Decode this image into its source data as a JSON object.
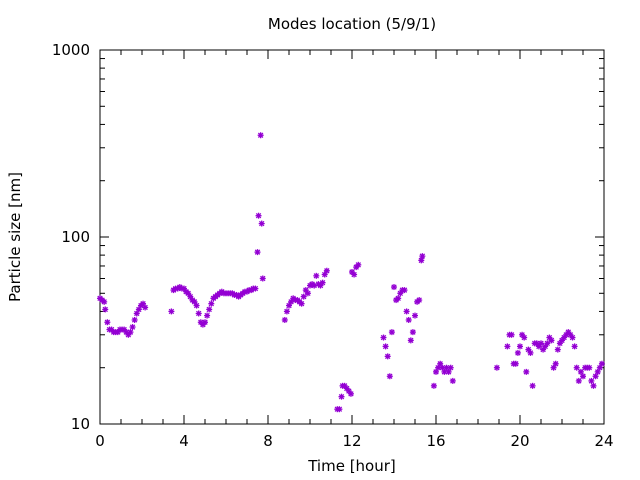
{
  "chart_data": {
    "type": "scatter",
    "title": "Modes location (5/9/1)",
    "xlabel": "Time [hour]",
    "ylabel": "Particle size [nm]",
    "xlim": [
      0,
      24
    ],
    "ylim": [
      10,
      1000
    ],
    "yscale": "log",
    "x_ticks": [
      0,
      4,
      8,
      12,
      16,
      20,
      24
    ],
    "x_tick_labels": [
      "0",
      "4",
      "8",
      "12",
      "16",
      "20",
      "24"
    ],
    "y_ticks": [
      10,
      100,
      1000
    ],
    "y_tick_labels": [
      "10",
      "100",
      "1000"
    ],
    "grid": false,
    "legend": "none",
    "marker_color": "#9400d3",
    "series": [
      {
        "points": [
          [
            0.0,
            47
          ],
          [
            0.1,
            46
          ],
          [
            0.2,
            45
          ],
          [
            0.25,
            41
          ],
          [
            0.35,
            35
          ],
          [
            0.45,
            32
          ],
          [
            0.55,
            32
          ],
          [
            0.65,
            31
          ],
          [
            0.75,
            31
          ],
          [
            0.85,
            31
          ],
          [
            0.95,
            32
          ],
          [
            1.05,
            32
          ],
          [
            1.15,
            32
          ],
          [
            1.25,
            31
          ],
          [
            1.35,
            30
          ],
          [
            1.45,
            31
          ],
          [
            1.55,
            33
          ],
          [
            1.65,
            36
          ],
          [
            1.75,
            39
          ],
          [
            1.85,
            41
          ],
          [
            1.95,
            43
          ],
          [
            2.05,
            44
          ],
          [
            2.15,
            42
          ],
          [
            3.4,
            40
          ],
          [
            3.5,
            52
          ],
          [
            3.6,
            53
          ],
          [
            3.7,
            53
          ],
          [
            3.8,
            54
          ],
          [
            3.9,
            53
          ],
          [
            4.0,
            53
          ],
          [
            4.1,
            51
          ],
          [
            4.2,
            50
          ],
          [
            4.3,
            48
          ],
          [
            4.4,
            46
          ],
          [
            4.5,
            45
          ],
          [
            4.6,
            43
          ],
          [
            4.7,
            39
          ],
          [
            4.8,
            35
          ],
          [
            4.9,
            34
          ],
          [
            5.0,
            35
          ],
          [
            5.1,
            38
          ],
          [
            5.2,
            41
          ],
          [
            5.3,
            44
          ],
          [
            5.4,
            47
          ],
          [
            5.5,
            48
          ],
          [
            5.6,
            49
          ],
          [
            5.7,
            50
          ],
          [
            5.8,
            51
          ],
          [
            5.9,
            50
          ],
          [
            6.0,
            50
          ],
          [
            6.1,
            50
          ],
          [
            6.2,
            50
          ],
          [
            6.3,
            50
          ],
          [
            6.4,
            49
          ],
          [
            6.5,
            49
          ],
          [
            6.6,
            48
          ],
          [
            6.7,
            49
          ],
          [
            6.8,
            50
          ],
          [
            6.9,
            51
          ],
          [
            7.0,
            51
          ],
          [
            7.1,
            52
          ],
          [
            7.2,
            52
          ],
          [
            7.3,
            53
          ],
          [
            7.4,
            53
          ],
          [
            7.5,
            83
          ],
          [
            7.55,
            130
          ],
          [
            7.65,
            350
          ],
          [
            7.7,
            118
          ],
          [
            7.75,
            60
          ],
          [
            8.8,
            36
          ],
          [
            8.9,
            40
          ],
          [
            9.0,
            43
          ],
          [
            9.1,
            45
          ],
          [
            9.2,
            47
          ],
          [
            9.3,
            46
          ],
          [
            9.4,
            46
          ],
          [
            9.5,
            45
          ],
          [
            9.6,
            44
          ],
          [
            9.7,
            48
          ],
          [
            9.8,
            52
          ],
          [
            9.9,
            50
          ],
          [
            10.0,
            55
          ],
          [
            10.1,
            56
          ],
          [
            10.2,
            55
          ],
          [
            10.3,
            62
          ],
          [
            10.4,
            56
          ],
          [
            10.5,
            55
          ],
          [
            10.6,
            57
          ],
          [
            10.7,
            63
          ],
          [
            10.8,
            66
          ],
          [
            11.3,
            12
          ],
          [
            11.4,
            12
          ],
          [
            11.5,
            14
          ],
          [
            11.55,
            16
          ],
          [
            11.65,
            16
          ],
          [
            11.75,
            15.5
          ],
          [
            11.85,
            15
          ],
          [
            11.95,
            14.5
          ],
          [
            12.0,
            65
          ],
          [
            12.1,
            63
          ],
          [
            12.2,
            69
          ],
          [
            12.3,
            71
          ],
          [
            13.5,
            29
          ],
          [
            13.6,
            26
          ],
          [
            13.7,
            23
          ],
          [
            13.8,
            18
          ],
          [
            13.9,
            31
          ],
          [
            14.0,
            54
          ],
          [
            14.1,
            46
          ],
          [
            14.2,
            47
          ],
          [
            14.3,
            50
          ],
          [
            14.4,
            52
          ],
          [
            14.5,
            52
          ],
          [
            14.6,
            40
          ],
          [
            14.7,
            36
          ],
          [
            14.8,
            28
          ],
          [
            14.9,
            31
          ],
          [
            15.0,
            38
          ],
          [
            15.1,
            45
          ],
          [
            15.2,
            46
          ],
          [
            15.3,
            75
          ],
          [
            15.35,
            79
          ],
          [
            15.9,
            16
          ],
          [
            16.0,
            19
          ],
          [
            16.1,
            20
          ],
          [
            16.2,
            21
          ],
          [
            16.3,
            20
          ],
          [
            16.4,
            19
          ],
          [
            16.5,
            20
          ],
          [
            16.6,
            19
          ],
          [
            16.7,
            20
          ],
          [
            16.8,
            17
          ],
          [
            18.9,
            20
          ],
          [
            19.4,
            26
          ],
          [
            19.5,
            30
          ],
          [
            19.6,
            30
          ],
          [
            19.7,
            21
          ],
          [
            19.8,
            21
          ],
          [
            19.9,
            24
          ],
          [
            20.0,
            26
          ],
          [
            20.1,
            30
          ],
          [
            20.2,
            29
          ],
          [
            20.3,
            19
          ],
          [
            20.4,
            25
          ],
          [
            20.5,
            24
          ],
          [
            20.6,
            16
          ],
          [
            20.7,
            27
          ],
          [
            20.8,
            27
          ],
          [
            20.9,
            26
          ],
          [
            21.0,
            27
          ],
          [
            21.1,
            25
          ],
          [
            21.2,
            26
          ],
          [
            21.3,
            27
          ],
          [
            21.4,
            29
          ],
          [
            21.5,
            28
          ],
          [
            21.6,
            20
          ],
          [
            21.7,
            21
          ],
          [
            21.8,
            25
          ],
          [
            21.9,
            27
          ],
          [
            22.0,
            28
          ],
          [
            22.1,
            29
          ],
          [
            22.2,
            30
          ],
          [
            22.3,
            31
          ],
          [
            22.4,
            30
          ],
          [
            22.5,
            29
          ],
          [
            22.6,
            26
          ],
          [
            22.7,
            20
          ],
          [
            22.8,
            17
          ],
          [
            22.9,
            19
          ],
          [
            23.0,
            18
          ],
          [
            23.1,
            20
          ],
          [
            23.2,
            20
          ],
          [
            23.3,
            20
          ],
          [
            23.4,
            17
          ],
          [
            23.5,
            16
          ],
          [
            23.6,
            18
          ],
          [
            23.7,
            19
          ],
          [
            23.8,
            20
          ],
          [
            23.9,
            21
          ]
        ]
      }
    ]
  }
}
